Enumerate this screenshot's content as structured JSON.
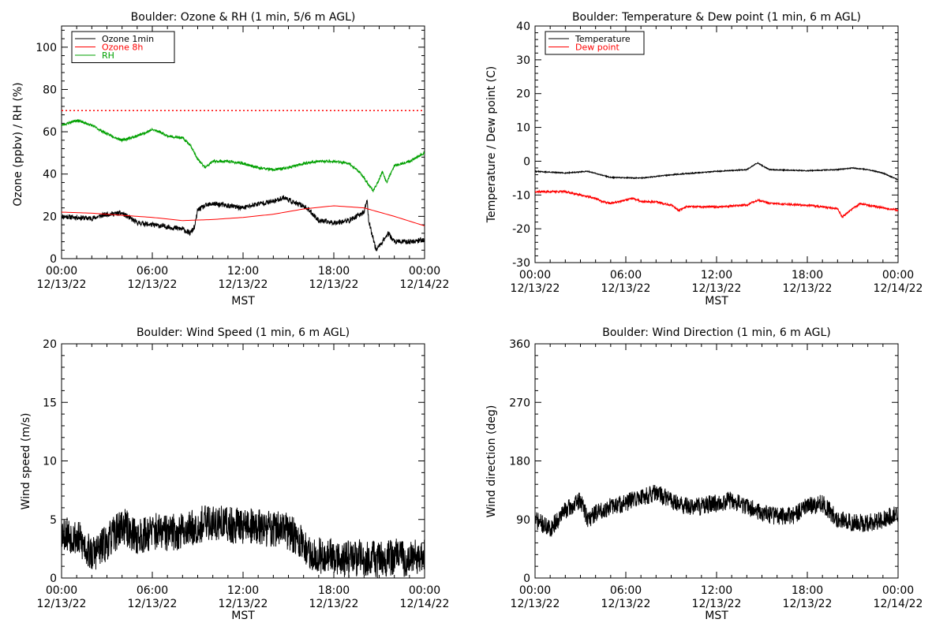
{
  "chart_data": [
    {
      "id": "ozone",
      "type": "line",
      "title": "Boulder: Ozone & RH (1 min, 5/6 m AGL)",
      "xlabel": "MST",
      "ylabel": "Ozone (ppbv) / RH (%)",
      "ylim": [
        0,
        110
      ],
      "yticks": [
        "0",
        "20",
        "40",
        "60",
        "80",
        "100"
      ],
      "ytick_values": [
        0,
        20,
        40,
        60,
        80,
        100
      ],
      "xticks": [
        {
          "time": "00:00",
          "date": "12/13/22"
        },
        {
          "time": "06:00",
          "date": "12/13/22"
        },
        {
          "time": "12:00",
          "date": "12/13/22"
        },
        {
          "time": "18:00",
          "date": "12/13/22"
        },
        {
          "time": "00:00",
          "date": "12/14/22"
        }
      ],
      "xrange_hours": [
        0,
        24
      ],
      "legend_position": "top-left",
      "reference_line": {
        "value": 70,
        "color": "#ff0000",
        "style": "dotted"
      },
      "series": [
        {
          "name": "Ozone 1min",
          "color": "#000000",
          "noise": 1.2,
          "seed": 11,
          "points": [
            [
              0,
              20
            ],
            [
              1,
              19.5
            ],
            [
              2,
              19
            ],
            [
              3,
              21
            ],
            [
              4,
              21.5
            ],
            [
              5,
              17
            ],
            [
              6,
              16
            ],
            [
              7,
              15
            ],
            [
              8,
              14
            ],
            [
              8.5,
              12
            ],
            [
              8.8,
              15
            ],
            [
              9,
              23
            ],
            [
              9.5,
              25
            ],
            [
              10,
              26
            ],
            [
              11,
              25
            ],
            [
              12,
              24
            ],
            [
              13,
              26
            ],
            [
              14,
              27
            ],
            [
              14.7,
              29
            ],
            [
              15.5,
              26
            ],
            [
              16,
              25
            ],
            [
              16.5,
              22
            ],
            [
              17,
              18
            ],
            [
              18,
              17
            ],
            [
              19,
              18
            ],
            [
              20,
              22
            ],
            [
              20.2,
              28
            ],
            [
              20.3,
              18
            ],
            [
              20.8,
              4
            ],
            [
              21.3,
              9
            ],
            [
              21.6,
              12
            ],
            [
              22,
              8
            ],
            [
              23,
              8
            ],
            [
              24,
              9
            ]
          ]
        },
        {
          "name": "Ozone 8h",
          "color": "#ff0000",
          "noise": 0,
          "seed": 1,
          "points": [
            [
              0,
              22
            ],
            [
              2,
              21.5
            ],
            [
              4,
              20.5
            ],
            [
              6,
              19.5
            ],
            [
              8,
              18
            ],
            [
              10,
              18.5
            ],
            [
              12,
              19.5
            ],
            [
              14,
              21
            ],
            [
              16,
              23.5
            ],
            [
              18,
              25
            ],
            [
              20,
              24
            ],
            [
              22,
              20
            ],
            [
              24,
              15.5
            ]
          ]
        },
        {
          "name": "RH",
          "color": "#00a000",
          "noise": 0.6,
          "seed": 23,
          "points": [
            [
              0,
              63
            ],
            [
              1,
              65.5
            ],
            [
              2,
              63
            ],
            [
              3,
              59
            ],
            [
              4,
              56
            ],
            [
              5,
              58
            ],
            [
              6,
              61
            ],
            [
              6.5,
              60
            ],
            [
              7,
              58
            ],
            [
              8,
              57
            ],
            [
              8.5,
              54
            ],
            [
              9,
              47
            ],
            [
              9.5,
              43
            ],
            [
              10,
              46
            ],
            [
              11,
              46
            ],
            [
              12,
              45
            ],
            [
              13,
              43
            ],
            [
              14,
              42
            ],
            [
              15,
              43
            ],
            [
              16,
              45
            ],
            [
              17,
              46
            ],
            [
              18,
              46
            ],
            [
              19,
              45
            ],
            [
              19.7,
              41
            ],
            [
              20.2,
              36
            ],
            [
              20.6,
              32
            ],
            [
              20.9,
              36
            ],
            [
              21.2,
              41
            ],
            [
              21.5,
              36
            ],
            [
              22,
              44
            ],
            [
              23,
              46
            ],
            [
              24,
              50
            ]
          ]
        }
      ]
    },
    {
      "id": "temp",
      "type": "line",
      "title": "Boulder: Temperature & Dew point (1 min, 6 m AGL)",
      "xlabel": "MST",
      "ylabel": "Temperature / Dew point (C)",
      "ylim": [
        -30,
        40
      ],
      "yticks": [
        "-30",
        "-20",
        "-10",
        "0",
        "10",
        "20",
        "30",
        "40"
      ],
      "ytick_values": [
        -30,
        -20,
        -10,
        0,
        10,
        20,
        30,
        40
      ],
      "xticks": [
        {
          "time": "00:00",
          "date": "12/13/22"
        },
        {
          "time": "06:00",
          "date": "12/13/22"
        },
        {
          "time": "12:00",
          "date": "12/13/22"
        },
        {
          "time": "18:00",
          "date": "12/13/22"
        },
        {
          "time": "00:00",
          "date": "12/14/22"
        }
      ],
      "xrange_hours": [
        0,
        24
      ],
      "legend_position": "top-left",
      "series": [
        {
          "name": "Temperature",
          "color": "#000000",
          "noise": 0.15,
          "seed": 31,
          "points": [
            [
              0,
              -3
            ],
            [
              2,
              -3.5
            ],
            [
              3.5,
              -3
            ],
            [
              5,
              -4.8
            ],
            [
              7,
              -5
            ],
            [
              9,
              -4
            ],
            [
              12,
              -3
            ],
            [
              14,
              -2.5
            ],
            [
              14.7,
              -0.5
            ],
            [
              15.5,
              -2.5
            ],
            [
              18,
              -2.8
            ],
            [
              20,
              -2.5
            ],
            [
              21,
              -2
            ],
            [
              22,
              -2.5
            ],
            [
              23,
              -3.5
            ],
            [
              24,
              -5.5
            ]
          ]
        },
        {
          "name": "Dew point",
          "color": "#ff0000",
          "noise": 0.3,
          "seed": 37,
          "points": [
            [
              0,
              -9
            ],
            [
              2,
              -9
            ],
            [
              3,
              -10
            ],
            [
              4,
              -11
            ],
            [
              4.5,
              -12
            ],
            [
              5,
              -12.5
            ],
            [
              6,
              -11.5
            ],
            [
              6.5,
              -11
            ],
            [
              7,
              -12
            ],
            [
              8,
              -12
            ],
            [
              9,
              -13
            ],
            [
              9.5,
              -14.5
            ],
            [
              10,
              -13.5
            ],
            [
              12,
              -13.5
            ],
            [
              14,
              -13
            ],
            [
              14.7,
              -11.5
            ],
            [
              15.5,
              -12.5
            ],
            [
              18,
              -13
            ],
            [
              20,
              -14
            ],
            [
              20.3,
              -16.5
            ],
            [
              21,
              -14
            ],
            [
              21.5,
              -12.5
            ],
            [
              22,
              -13
            ],
            [
              24,
              -14.5
            ]
          ]
        }
      ]
    },
    {
      "id": "wspd",
      "type": "line",
      "title": "Boulder: Wind Speed (1 min, 6 m AGL)",
      "xlabel": "MST",
      "ylabel": "Wind speed (m/s)",
      "ylim": [
        0,
        20
      ],
      "yticks": [
        "0",
        "5",
        "10",
        "15",
        "20"
      ],
      "ytick_values": [
        0,
        5,
        10,
        15,
        20
      ],
      "xticks": [
        {
          "time": "00:00",
          "date": "12/13/22"
        },
        {
          "time": "06:00",
          "date": "12/13/22"
        },
        {
          "time": "12:00",
          "date": "12/13/22"
        },
        {
          "time": "18:00",
          "date": "12/13/22"
        },
        {
          "time": "00:00",
          "date": "12/14/22"
        }
      ],
      "xrange_hours": [
        0,
        24
      ],
      "legend_position": "none",
      "series": [
        {
          "name": "",
          "color": "#000000",
          "noise": 1.6,
          "seed": 53,
          "points": [
            [
              0,
              4
            ],
            [
              1,
              3.5
            ],
            [
              2,
              2
            ],
            [
              3,
              3
            ],
            [
              4,
              4.5
            ],
            [
              5,
              3.5
            ],
            [
              6,
              4
            ],
            [
              7,
              3.8
            ],
            [
              8,
              4
            ],
            [
              9,
              4.5
            ],
            [
              10,
              4.8
            ],
            [
              11,
              4.5
            ],
            [
              12,
              4.5
            ],
            [
              13,
              4.3
            ],
            [
              14,
              4.2
            ],
            [
              15,
              4
            ],
            [
              15.8,
              3
            ],
            [
              16.5,
              2
            ],
            [
              18,
              1.8
            ],
            [
              19,
              1.6
            ],
            [
              20,
              1.8
            ],
            [
              21,
              1.5
            ],
            [
              22,
              1.8
            ],
            [
              23,
              1.6
            ],
            [
              24,
              1.8
            ]
          ]
        }
      ]
    },
    {
      "id": "wdir",
      "type": "line",
      "title": "Boulder: Wind Direction (1 min, 6 m AGL)",
      "xlabel": "MST",
      "ylabel": "Wind direction (deg)",
      "ylim": [
        0,
        360
      ],
      "yticks": [
        "0",
        "90",
        "180",
        "270",
        "360"
      ],
      "ytick_values": [
        0,
        90,
        180,
        270,
        360
      ],
      "xticks": [
        {
          "time": "00:00",
          "date": "12/13/22"
        },
        {
          "time": "06:00",
          "date": "12/13/22"
        },
        {
          "time": "12:00",
          "date": "12/13/22"
        },
        {
          "time": "18:00",
          "date": "12/13/22"
        },
        {
          "time": "00:00",
          "date": "12/14/22"
        }
      ],
      "xrange_hours": [
        0,
        24
      ],
      "legend_position": "none",
      "series": [
        {
          "name": "",
          "color": "#000000",
          "noise": 14,
          "seed": 71,
          "points": [
            [
              0,
              90
            ],
            [
              1,
              75
            ],
            [
              2,
              105
            ],
            [
              2.5,
              110
            ],
            [
              3,
              120
            ],
            [
              3.5,
              90
            ],
            [
              4,
              100
            ],
            [
              5,
              110
            ],
            [
              6,
              115
            ],
            [
              7,
              125
            ],
            [
              8,
              130
            ],
            [
              9,
              120
            ],
            [
              10,
              110
            ],
            [
              11,
              110
            ],
            [
              12,
              115
            ],
            [
              13,
              120
            ],
            [
              14,
              110
            ],
            [
              15,
              100
            ],
            [
              16,
              95
            ],
            [
              17,
              95
            ],
            [
              18,
              110
            ],
            [
              19,
              115
            ],
            [
              20,
              90
            ],
            [
              21,
              85
            ],
            [
              22,
              85
            ],
            [
              23,
              90
            ],
            [
              24,
              100
            ]
          ]
        }
      ]
    }
  ]
}
